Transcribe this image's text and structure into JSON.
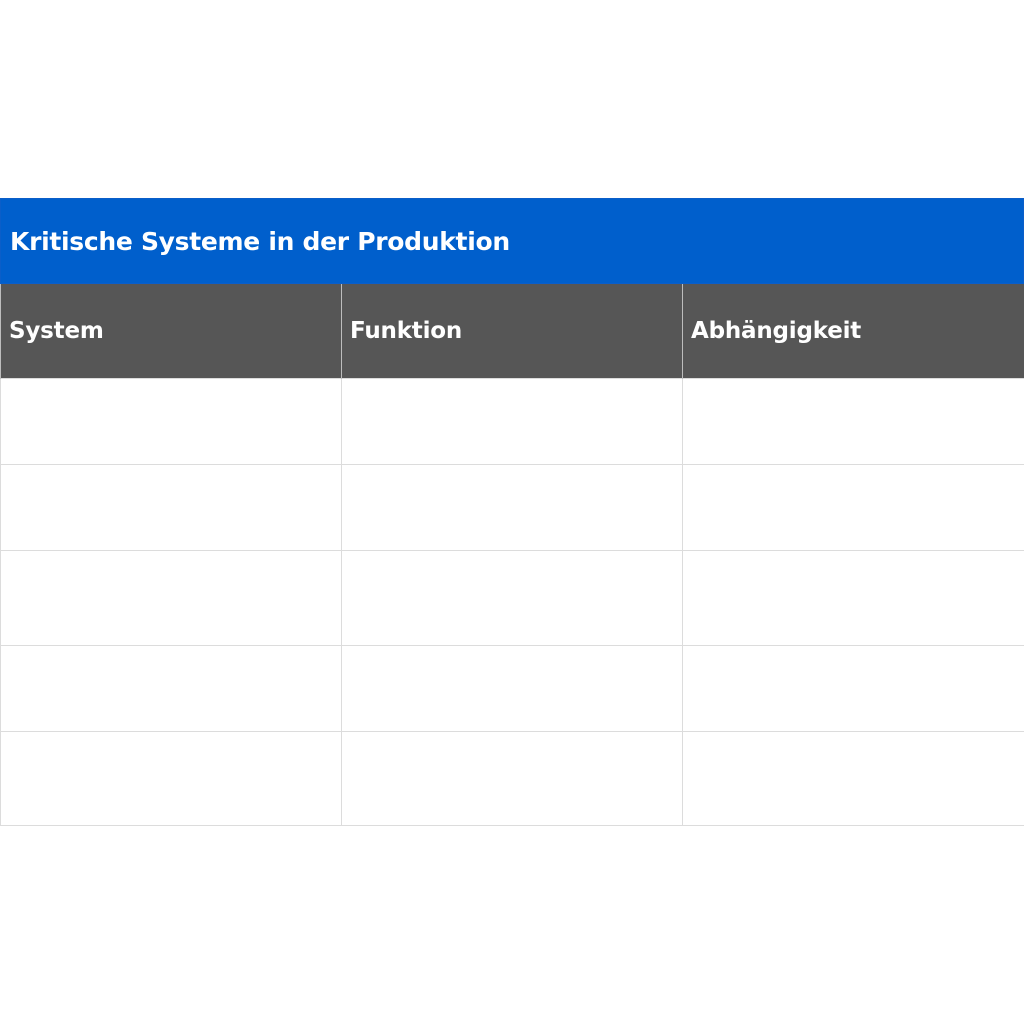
{
  "table": {
    "title": "Kritische Systeme in der Produktion",
    "columns": [
      "System",
      "Funktion",
      "Abhängigkeit"
    ],
    "rows": [
      [
        "",
        "",
        ""
      ],
      [
        "",
        "",
        ""
      ],
      [
        "",
        "",
        ""
      ],
      [
        "",
        "",
        ""
      ],
      [
        "",
        "",
        ""
      ]
    ]
  },
  "colors": {
    "title_background": "#005fcc",
    "header_background": "#565656",
    "header_text": "#ffffff",
    "grid_line": "#dcdcdc"
  }
}
